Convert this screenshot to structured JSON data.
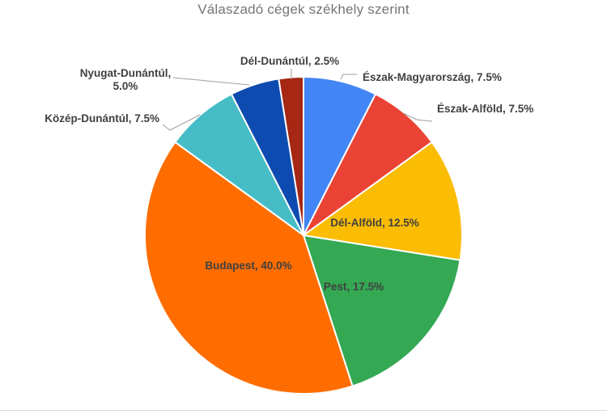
{
  "chart_data": {
    "type": "pie",
    "title": "Válaszadó cégek székhely szerint",
    "start_angle_deg": 0,
    "direction": "clockwise",
    "unit": "%",
    "slices": [
      {
        "label": "Észak-Magyarország",
        "value": 7.5,
        "display": "Észak-Magyarország, 7.5%",
        "color": "#4285F4",
        "label_placement": "outside"
      },
      {
        "label": "Észak-Alföld",
        "value": 7.5,
        "display": "Észak-Alföld, 7.5%",
        "color": "#EA4335",
        "label_placement": "outside"
      },
      {
        "label": "Dél-Alföld",
        "value": 12.5,
        "display": "Dél-Alföld, 12.5%",
        "color": "#FBBC04",
        "label_placement": "inside"
      },
      {
        "label": "Pest",
        "value": 17.5,
        "display": "Pest, 17.5%",
        "color": "#34A853",
        "label_placement": "inside"
      },
      {
        "label": "Budapest",
        "value": 40.0,
        "display": "Budapest, 40.0%",
        "color": "#FF6D01",
        "label_placement": "inside"
      },
      {
        "label": "Közép-Dunántúl",
        "value": 7.5,
        "display": "Közép-Dunántúl, 7.5%",
        "color": "#46BDC6",
        "label_placement": "outside"
      },
      {
        "label": "Nyugat-Dunántúl",
        "value": 5.0,
        "display": "Nyugat-Dunántúl, 5.0%",
        "display_lines": [
          "Nyugat-Dunántúl,",
          "5.0%"
        ],
        "color": "#0D4BB0",
        "label_placement": "outside"
      },
      {
        "label": "Dél-Dunántúl",
        "value": 2.5,
        "display": "Dél-Dunántúl, 2.5%",
        "color": "#A52714",
        "label_placement": "outside"
      }
    ],
    "colors": {
      "title_text": "#757575",
      "label_text": "#404040",
      "leader_line": "#9e9e9e",
      "slice_border": "#ffffff",
      "footer_divider": "#d9d9d9",
      "background": "#ffffff"
    }
  }
}
